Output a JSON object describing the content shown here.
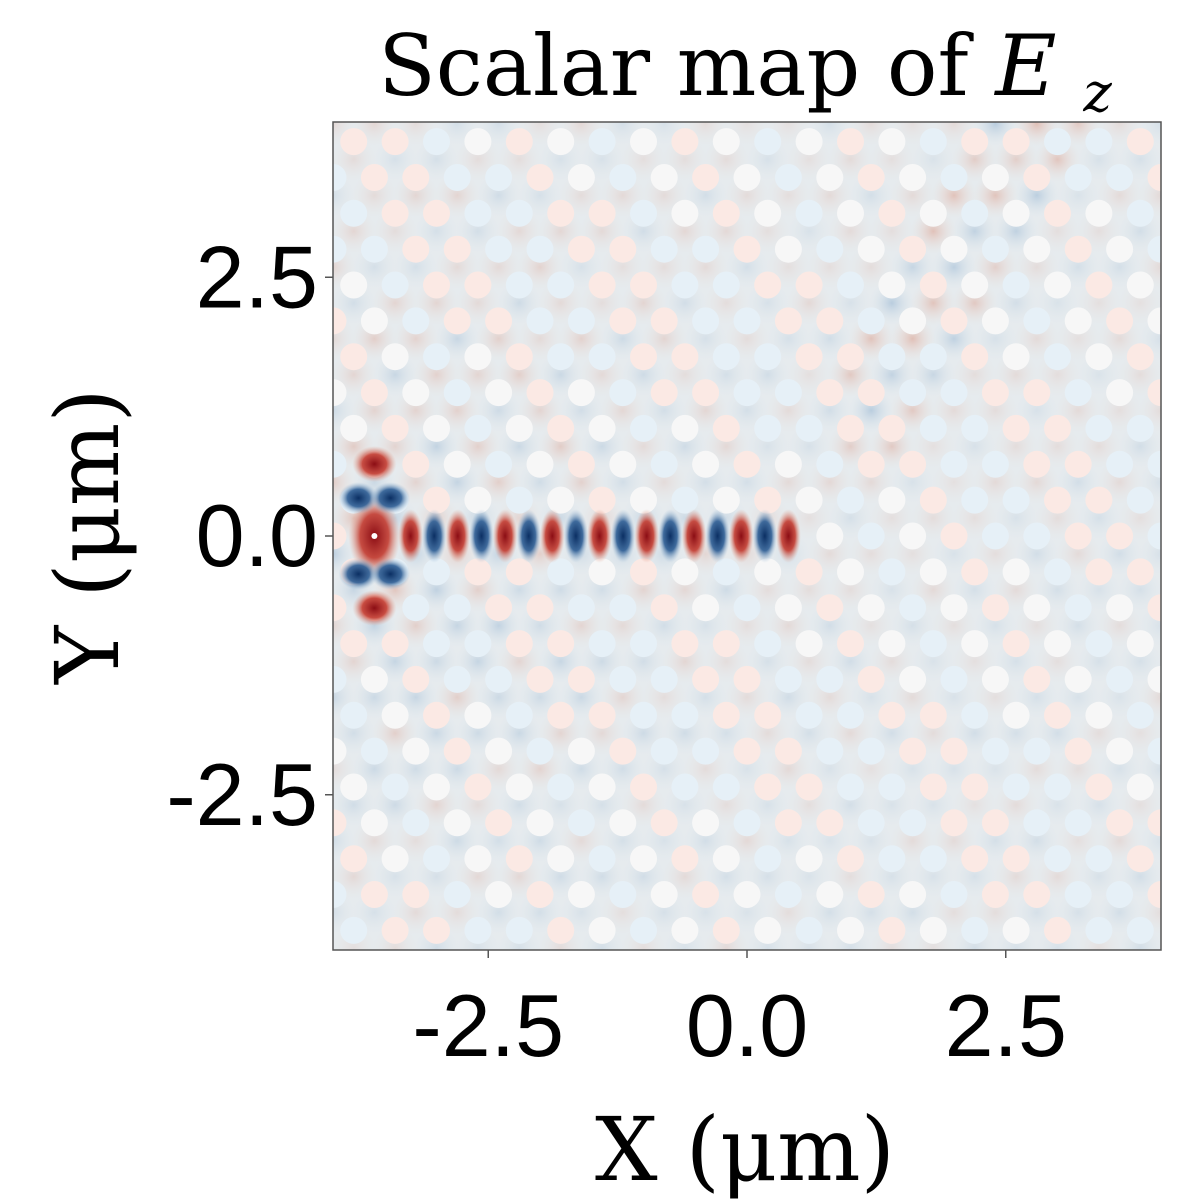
{
  "chart_data": {
    "type": "heatmap",
    "title_text": "Scalar map of ",
    "title_symbol": "E",
    "title_subscript": "z",
    "xlabel": "X (μm)",
    "ylabel": "Y (μm)",
    "xlim": [
      -4.0,
      4.0
    ],
    "ylim": [
      -4.0,
      4.0
    ],
    "x_ticks": [
      -2.5,
      0.0,
      2.5
    ],
    "y_ticks": [
      2.5,
      0.0,
      -2.5
    ],
    "x_tick_labels": [
      "-2.5",
      "0.0",
      "2.5"
    ],
    "y_tick_labels": [
      "2.5",
      "0.0",
      "-2.5"
    ],
    "colormap": "RdBu (diverging)",
    "colors": {
      "positive": "#a50f15",
      "negative": "#08306b",
      "zero": "#e6ebee",
      "hole": "#f7f7f7"
    },
    "lattice": {
      "type": "triangular",
      "pitch_um": 0.4,
      "hole_radius_um": 0.13
    },
    "waveguide": {
      "axis": "y = 0",
      "x_start_um": -3.6,
      "x_end_um": 0.4
    },
    "source": {
      "x_um": -3.6,
      "y_um": 0.0
    },
    "field_pattern": "guided standing-wave mode along the line defect, strongest near the source, with weak leakage into the upper-right photonic-crystal region",
    "grid": false,
    "legend": "none"
  }
}
